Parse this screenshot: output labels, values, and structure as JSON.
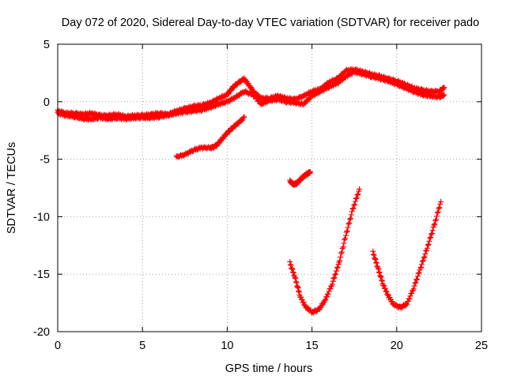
{
  "chart_data": {
    "type": "scatter",
    "title": "Day 072 of 2020, Sidereal Day-to-day VTEC variation (SDTVAR) for receiver pado",
    "xlabel": "GPS time / hours",
    "ylabel": "SDTVAR / TECUs",
    "xlim": [
      0,
      25
    ],
    "ylim": [
      -20,
      5
    ],
    "xticks": [
      0,
      5,
      10,
      15,
      20,
      25
    ],
    "yticks": [
      5,
      0,
      -5,
      -10,
      -15,
      -20
    ],
    "grid": true,
    "marker": "plus",
    "series_color": "#ff0000",
    "series": [
      {
        "name": "arc-main-upper",
        "x": [
          0.0,
          0.5,
          1.0,
          1.5,
          2.0,
          2.5,
          3.0,
          3.5,
          4.0,
          4.5,
          5.0,
          5.5,
          6.0,
          6.5,
          7.0,
          7.5,
          8.0,
          8.5,
          9.0,
          9.5,
          10.0,
          10.3,
          10.6,
          11.0,
          11.3,
          11.6,
          12.0,
          12.5,
          13.0,
          13.5,
          14.0,
          14.5,
          15.0,
          15.5,
          16.0,
          16.5,
          17.0,
          17.5,
          18.0,
          18.5,
          19.0,
          19.5,
          20.0,
          20.5,
          21.0,
          21.5,
          22.0,
          22.5,
          22.8
        ],
        "y": [
          -0.8,
          -1.0,
          -1.0,
          -1.1,
          -1.0,
          -1.2,
          -1.2,
          -1.1,
          -1.3,
          -1.2,
          -1.2,
          -1.1,
          -1.0,
          -1.1,
          -0.8,
          -0.6,
          -0.4,
          -0.3,
          -0.1,
          0.3,
          0.6,
          1.2,
          1.6,
          2.0,
          1.4,
          0.8,
          0.3,
          0.3,
          0.5,
          0.3,
          0.2,
          0.5,
          0.9,
          1.1,
          1.7,
          2.0,
          2.7,
          2.8,
          2.6,
          2.4,
          2.2,
          2.0,
          1.8,
          1.5,
          1.2,
          1.0,
          0.9,
          0.9,
          1.2
        ]
      },
      {
        "name": "arc-main-lower",
        "x": [
          0.0,
          0.5,
          1.0,
          1.5,
          2.0,
          2.5,
          3.0,
          3.5,
          4.0,
          4.5,
          5.0,
          5.5,
          6.0,
          6.5,
          7.0,
          7.5,
          8.0,
          8.5,
          9.0,
          9.5,
          10.0,
          10.5,
          11.0,
          11.5,
          12.0,
          12.5,
          13.0,
          13.5,
          14.0,
          14.5,
          15.0,
          15.5,
          16.0,
          16.5,
          17.0,
          17.5,
          18.0,
          18.5,
          19.0,
          19.5,
          20.0,
          20.5,
          21.0,
          21.5,
          22.0,
          22.5,
          22.8
        ],
        "y": [
          -1.0,
          -1.2,
          -1.3,
          -1.5,
          -1.5,
          -1.4,
          -1.5,
          -1.4,
          -1.5,
          -1.4,
          -1.4,
          -1.4,
          -1.3,
          -1.2,
          -1.0,
          -0.9,
          -0.8,
          -0.7,
          -0.5,
          -0.2,
          0.0,
          0.4,
          0.9,
          0.6,
          -0.2,
          0.1,
          0.2,
          0.0,
          -0.1,
          -0.2,
          0.5,
          0.9,
          1.3,
          1.6,
          2.2,
          2.6,
          2.4,
          2.2,
          2.0,
          1.8,
          1.5,
          1.2,
          0.9,
          0.6,
          0.5,
          0.4,
          0.6
        ]
      },
      {
        "name": "arc-07-11h",
        "x": [
          7.0,
          7.5,
          8.0,
          8.5,
          9.0,
          9.3,
          9.6,
          10.0,
          10.3,
          10.6,
          11.0
        ],
        "y": [
          -4.8,
          -4.6,
          -4.2,
          -4.0,
          -4.0,
          -3.9,
          -3.4,
          -2.7,
          -2.3,
          -1.9,
          -1.4
        ]
      },
      {
        "name": "arc-13h",
        "x": [
          13.7,
          13.9,
          14.1,
          14.3,
          14.5,
          14.7,
          14.9
        ],
        "y": [
          -6.9,
          -7.2,
          -7.1,
          -6.8,
          -6.5,
          -6.3,
          -6.1
        ]
      },
      {
        "name": "arc-14-18h",
        "x": [
          13.7,
          14.0,
          14.3,
          14.6,
          15.0,
          15.4,
          15.8,
          16.2,
          16.6,
          17.0,
          17.4,
          17.8
        ],
        "y": [
          -14.0,
          -15.3,
          -16.9,
          -17.8,
          -18.3,
          -18.1,
          -17.2,
          -15.8,
          -14.0,
          -11.6,
          -9.4,
          -7.6
        ]
      },
      {
        "name": "arc-18-23h",
        "x": [
          18.6,
          18.9,
          19.2,
          19.5,
          19.8,
          20.2,
          20.6,
          21.0,
          21.4,
          21.8,
          22.2,
          22.6
        ],
        "y": [
          -13.1,
          -14.5,
          -15.9,
          -16.9,
          -17.6,
          -17.9,
          -17.6,
          -16.2,
          -14.5,
          -12.7,
          -10.8,
          -8.7
        ]
      }
    ]
  }
}
